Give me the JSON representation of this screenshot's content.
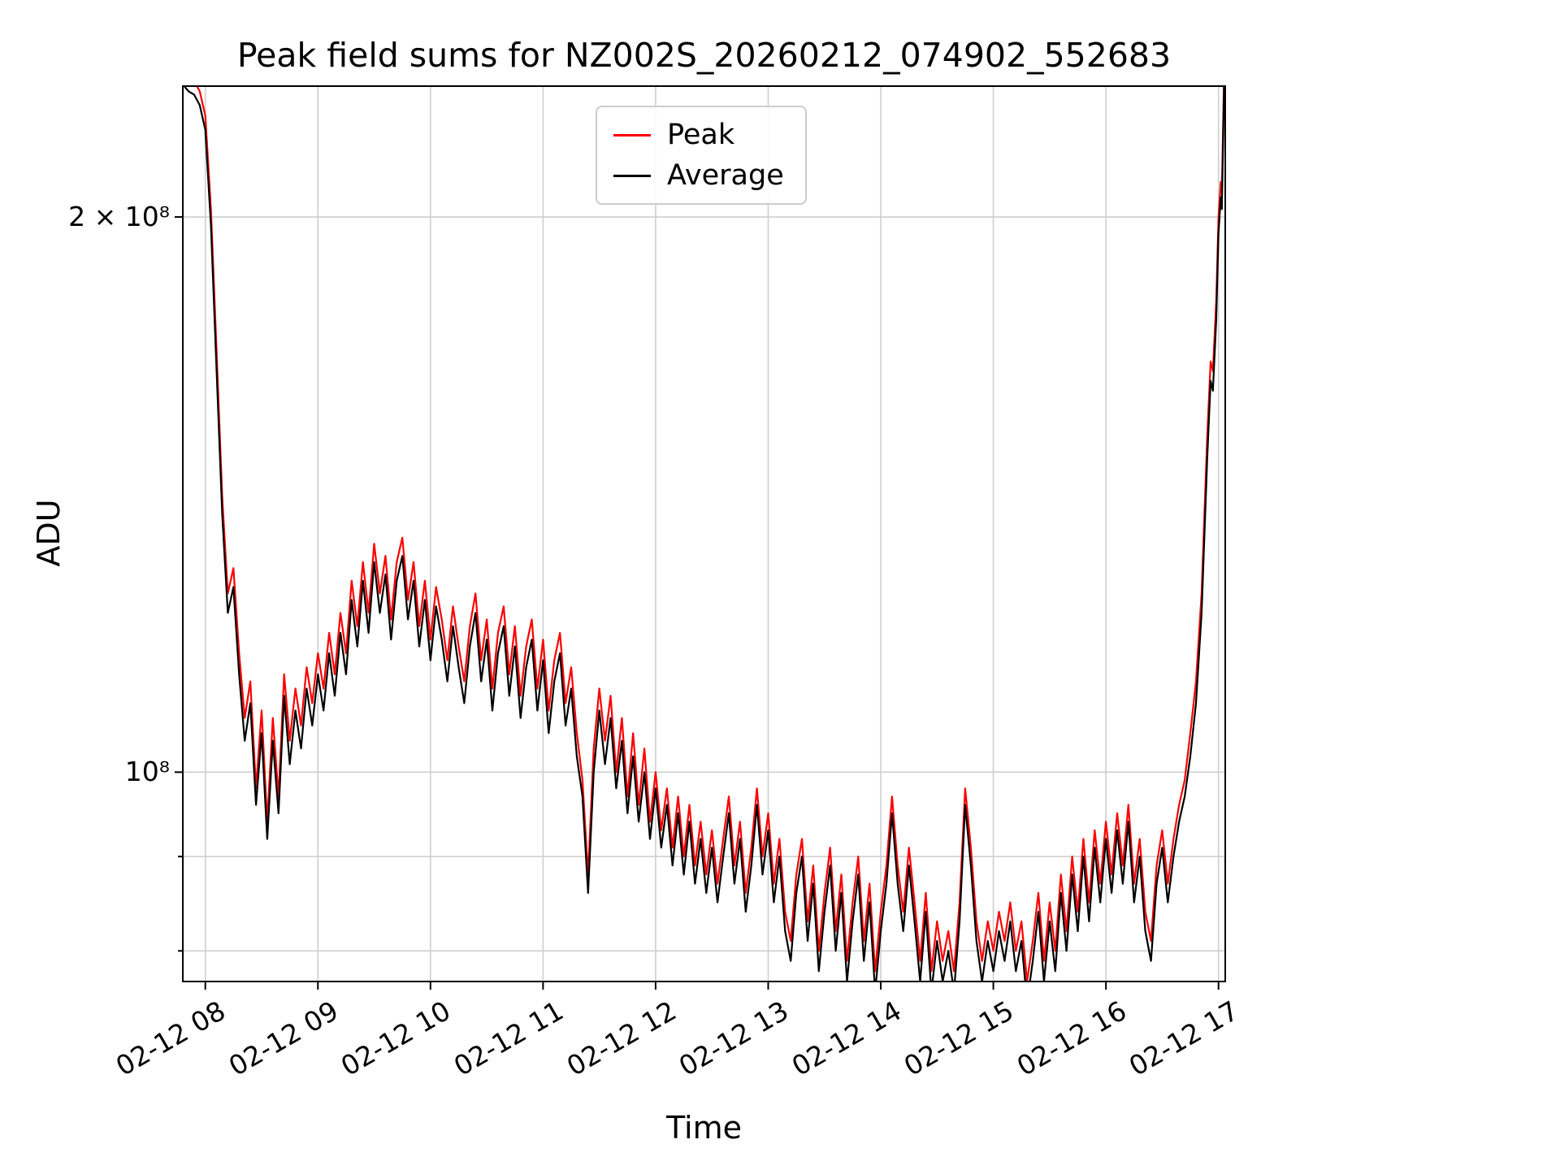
{
  "figure": {
    "title": "Peak field sums for NZ002S_20260212_074902_552683",
    "xlabel": "Time",
    "ylabel": "ADU"
  },
  "legend": {
    "entries": [
      {
        "label": "Peak",
        "color": "#ff0000"
      },
      {
        "label": "Average",
        "color": "#000000"
      }
    ]
  },
  "chart_data": {
    "type": "line",
    "title": "Peak field sums for NZ002S_20260212_074902_552683",
    "xlabel": "Time",
    "ylabel": "ADU",
    "yscale": "log",
    "grid": true,
    "legend_position": "upper center",
    "x_unit": "hours of day on 02-12 (decimal)",
    "y_unit": "ADU, values stored in units of 1e6",
    "xlim": [
      7.8,
      17.06
    ],
    "ylim": [
      77,
      235.5
    ],
    "y_ticks_major": [
      {
        "value": 100,
        "label": "10⁸"
      },
      {
        "value": 200,
        "label": "2 × 10⁸"
      }
    ],
    "y_ticks_minor": [
      80,
      90
    ],
    "x_ticks": [
      {
        "value": 8,
        "label": "02-12 08"
      },
      {
        "value": 9,
        "label": "02-12 09"
      },
      {
        "value": 10,
        "label": "02-12 10"
      },
      {
        "value": 11,
        "label": "02-12 11"
      },
      {
        "value": 12,
        "label": "02-12 12"
      },
      {
        "value": 13,
        "label": "02-12 13"
      },
      {
        "value": 14,
        "label": "02-12 14"
      },
      {
        "value": 15,
        "label": "02-12 15"
      },
      {
        "value": 16,
        "label": "02-12 16"
      },
      {
        "value": 17,
        "label": "02-12 17"
      }
    ],
    "style": {
      "grid_color": "#cfcfcf",
      "spine_color": "#000000",
      "line_width": 2.2
    },
    "series": [
      {
        "name": "Peak",
        "color": "#ff0000",
        "point_index": 2
      },
      {
        "name": "Average",
        "color": "#000000",
        "point_index": 1
      }
    ],
    "points_format": "[t_hours, average_1e6, peak_1e6]",
    "points": [
      [
        7.8,
        236,
        240
      ],
      [
        7.85,
        234,
        238
      ],
      [
        7.9,
        233,
        237
      ],
      [
        7.95,
        230,
        234
      ],
      [
        8.0,
        223,
        227
      ],
      [
        8.05,
        198,
        202
      ],
      [
        8.1,
        165,
        169
      ],
      [
        8.15,
        138,
        141
      ],
      [
        8.2,
        122,
        125
      ],
      [
        8.25,
        126,
        129
      ],
      [
        8.3,
        113,
        116
      ],
      [
        8.35,
        104,
        107
      ],
      [
        8.4,
        109,
        112
      ],
      [
        8.45,
        96,
        98
      ],
      [
        8.5,
        105,
        108
      ],
      [
        8.55,
        92,
        94
      ],
      [
        8.6,
        104,
        107
      ],
      [
        8.65,
        95,
        97
      ],
      [
        8.7,
        110,
        113
      ],
      [
        8.75,
        101,
        104
      ],
      [
        8.8,
        108,
        111
      ],
      [
        8.85,
        103,
        106
      ],
      [
        8.9,
        111,
        114
      ],
      [
        8.95,
        106,
        109
      ],
      [
        9.0,
        113,
        116
      ],
      [
        9.05,
        108,
        111
      ],
      [
        9.1,
        116,
        119
      ],
      [
        9.15,
        110,
        113
      ],
      [
        9.2,
        119,
        122
      ],
      [
        9.25,
        113,
        116
      ],
      [
        9.3,
        124,
        127
      ],
      [
        9.35,
        117,
        120
      ],
      [
        9.4,
        127,
        130
      ],
      [
        9.45,
        119,
        122
      ],
      [
        9.5,
        130,
        133
      ],
      [
        9.55,
        122,
        125
      ],
      [
        9.6,
        128,
        131
      ],
      [
        9.65,
        118,
        121
      ],
      [
        9.7,
        127,
        130
      ],
      [
        9.75,
        131,
        134
      ],
      [
        9.8,
        121,
        124
      ],
      [
        9.85,
        127,
        130
      ],
      [
        9.9,
        117,
        120
      ],
      [
        9.95,
        124,
        127
      ],
      [
        10.0,
        115,
        118
      ],
      [
        10.05,
        123,
        126
      ],
      [
        10.1,
        118,
        121
      ],
      [
        10.15,
        112,
        115
      ],
      [
        10.2,
        120,
        123
      ],
      [
        10.25,
        114,
        117
      ],
      [
        10.3,
        109,
        112
      ],
      [
        10.35,
        117,
        120
      ],
      [
        10.4,
        122,
        125
      ],
      [
        10.45,
        112,
        115
      ],
      [
        10.5,
        118,
        121
      ],
      [
        10.55,
        108,
        111
      ],
      [
        10.6,
        116,
        119
      ],
      [
        10.65,
        120,
        123
      ],
      [
        10.7,
        110,
        113
      ],
      [
        10.75,
        117,
        120
      ],
      [
        10.8,
        107,
        110
      ],
      [
        10.85,
        114,
        117
      ],
      [
        10.9,
        118,
        121
      ],
      [
        10.95,
        108,
        111
      ],
      [
        11.0,
        115,
        118
      ],
      [
        11.05,
        105,
        108
      ],
      [
        11.1,
        112,
        115
      ],
      [
        11.15,
        116,
        119
      ],
      [
        11.2,
        106,
        109
      ],
      [
        11.25,
        111,
        114
      ],
      [
        11.3,
        102,
        105
      ],
      [
        11.35,
        97,
        99
      ],
      [
        11.4,
        86,
        88
      ],
      [
        11.45,
        100,
        103
      ],
      [
        11.5,
        108,
        111
      ],
      [
        11.55,
        101,
        104
      ],
      [
        11.6,
        107,
        110
      ],
      [
        11.65,
        98,
        100
      ],
      [
        11.7,
        104,
        107
      ],
      [
        11.75,
        95,
        97
      ],
      [
        11.8,
        102,
        105
      ],
      [
        11.85,
        94,
        96
      ],
      [
        11.9,
        100,
        103
      ],
      [
        11.95,
        92,
        94
      ],
      [
        12.0,
        98,
        100
      ],
      [
        12.05,
        91,
        93
      ],
      [
        12.1,
        96,
        98
      ],
      [
        12.15,
        89,
        91
      ],
      [
        12.2,
        95,
        97
      ],
      [
        12.25,
        88,
        90
      ],
      [
        12.3,
        94,
        96
      ],
      [
        12.35,
        87,
        89
      ],
      [
        12.4,
        92,
        94
      ],
      [
        12.45,
        86,
        88
      ],
      [
        12.5,
        91,
        93
      ],
      [
        12.55,
        85,
        87
      ],
      [
        12.6,
        90,
        92
      ],
      [
        12.65,
        95,
        97
      ],
      [
        12.7,
        87,
        89
      ],
      [
        12.75,
        92,
        94
      ],
      [
        12.8,
        84,
        86
      ],
      [
        12.85,
        89,
        91
      ],
      [
        12.9,
        96,
        98
      ],
      [
        12.95,
        88,
        90
      ],
      [
        13.0,
        93,
        95
      ],
      [
        13.05,
        85,
        87
      ],
      [
        13.1,
        90,
        92
      ],
      [
        13.15,
        82,
        84
      ],
      [
        13.2,
        79,
        81
      ],
      [
        13.25,
        86,
        88
      ],
      [
        13.3,
        90,
        92
      ],
      [
        13.35,
        81,
        83
      ],
      [
        13.4,
        87,
        89
      ],
      [
        13.45,
        78,
        80
      ],
      [
        13.5,
        84,
        86
      ],
      [
        13.55,
        89,
        91
      ],
      [
        13.6,
        80,
        82
      ],
      [
        13.65,
        86,
        88
      ],
      [
        13.7,
        77,
        79
      ],
      [
        13.75,
        83,
        85
      ],
      [
        13.8,
        88,
        90
      ],
      [
        13.85,
        79,
        81
      ],
      [
        13.9,
        85,
        87
      ],
      [
        13.95,
        76,
        78
      ],
      [
        14.0,
        82,
        84
      ],
      [
        14.05,
        87,
        89
      ],
      [
        14.1,
        95,
        97
      ],
      [
        14.15,
        87,
        89
      ],
      [
        14.2,
        82,
        84
      ],
      [
        14.25,
        89,
        91
      ],
      [
        14.3,
        83,
        85
      ],
      [
        14.35,
        77,
        79
      ],
      [
        14.4,
        84,
        86
      ],
      [
        14.45,
        76,
        78
      ],
      [
        14.5,
        81,
        83
      ],
      [
        14.55,
        77,
        79
      ],
      [
        14.6,
        80,
        82
      ],
      [
        14.65,
        76,
        78
      ],
      [
        14.7,
        83,
        85
      ],
      [
        14.75,
        96,
        98
      ],
      [
        14.8,
        89,
        91
      ],
      [
        14.85,
        81,
        83
      ],
      [
        14.9,
        77,
        79
      ],
      [
        14.95,
        81,
        83
      ],
      [
        15.0,
        78,
        80
      ],
      [
        15.05,
        82,
        84
      ],
      [
        15.1,
        79,
        81
      ],
      [
        15.15,
        83,
        85
      ],
      [
        15.2,
        78,
        80
      ],
      [
        15.25,
        81,
        83
      ],
      [
        15.3,
        75,
        77
      ],
      [
        15.35,
        79,
        81
      ],
      [
        15.4,
        84,
        86
      ],
      [
        15.45,
        77,
        79
      ],
      [
        15.5,
        83,
        85
      ],
      [
        15.55,
        78,
        80
      ],
      [
        15.6,
        86,
        88
      ],
      [
        15.65,
        80,
        82
      ],
      [
        15.7,
        88,
        90
      ],
      [
        15.75,
        82,
        84
      ],
      [
        15.8,
        90,
        92
      ],
      [
        15.85,
        83,
        85
      ],
      [
        15.9,
        91,
        93
      ],
      [
        15.95,
        85,
        87
      ],
      [
        16.0,
        92,
        94
      ],
      [
        16.05,
        86,
        88
      ],
      [
        16.1,
        93,
        95
      ],
      [
        16.15,
        87,
        89
      ],
      [
        16.2,
        94,
        96
      ],
      [
        16.25,
        85,
        87
      ],
      [
        16.3,
        90,
        92
      ],
      [
        16.35,
        82,
        84
      ],
      [
        16.4,
        79,
        81
      ],
      [
        16.45,
        87,
        89
      ],
      [
        16.5,
        91,
        93
      ],
      [
        16.55,
        85,
        87
      ],
      [
        16.6,
        90,
        92
      ],
      [
        16.65,
        94,
        96
      ],
      [
        16.7,
        97,
        99
      ],
      [
        16.75,
        102,
        105
      ],
      [
        16.8,
        109,
        112
      ],
      [
        16.85,
        122,
        125
      ],
      [
        16.9,
        148,
        152
      ],
      [
        16.93,
        163,
        167
      ],
      [
        16.95,
        161,
        165
      ],
      [
        16.98,
        176,
        180
      ],
      [
        17.0,
        196,
        200
      ],
      [
        17.02,
        205,
        209
      ],
      [
        17.03,
        202,
        206
      ],
      [
        17.05,
        236,
        240
      ]
    ]
  }
}
